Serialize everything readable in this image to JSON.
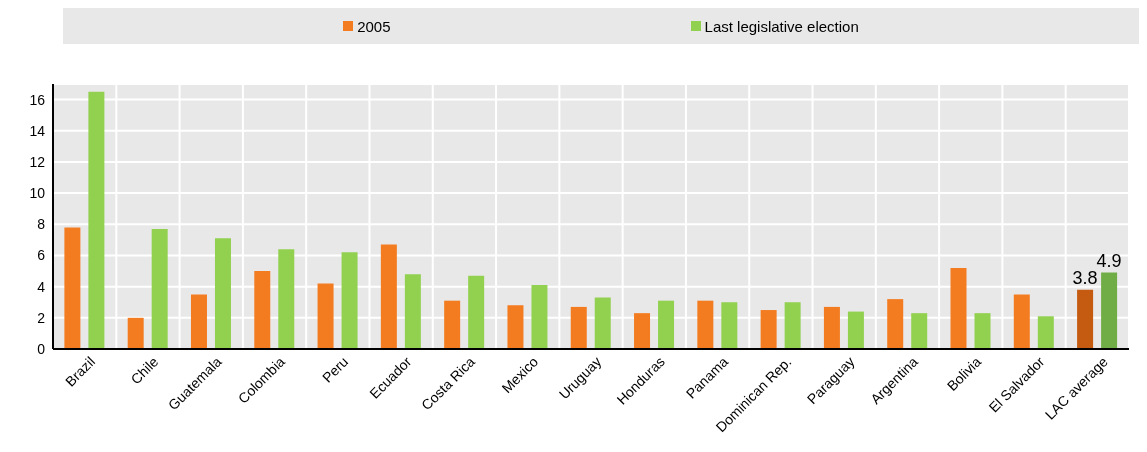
{
  "chart_data": {
    "type": "bar",
    "categories": [
      "Brazil",
      "Chile",
      "Guatemala",
      "Colombia",
      "Peru",
      "Ecuador",
      "Costa Rica",
      "Mexico",
      "Uruguay",
      "Honduras",
      "Panama",
      "Dominican Rep.",
      "Paraguay",
      "Argentina",
      "Bolivia",
      "El Salvador",
      "LAC average"
    ],
    "series": [
      {
        "name": "2005",
        "color": "#f47c20",
        "colors": [
          "#f47c20",
          "#f47c20",
          "#f47c20",
          "#f47c20",
          "#f47c20",
          "#f47c20",
          "#f47c20",
          "#f47c20",
          "#f47c20",
          "#f47c20",
          "#f47c20",
          "#f47c20",
          "#f47c20",
          "#f47c20",
          "#f47c20",
          "#f47c20",
          "#c55a11"
        ],
        "values": [
          7.8,
          2.0,
          3.5,
          5.0,
          4.2,
          6.7,
          3.1,
          2.8,
          2.7,
          2.3,
          3.1,
          2.5,
          2.7,
          3.2,
          5.2,
          3.5,
          3.8
        ],
        "value_labels": [
          null,
          null,
          null,
          null,
          null,
          null,
          null,
          null,
          null,
          null,
          null,
          null,
          null,
          null,
          null,
          null,
          "3.8"
        ]
      },
      {
        "name": "Last legislative election",
        "color": "#92d050",
        "colors": [
          "#92d050",
          "#92d050",
          "#92d050",
          "#92d050",
          "#92d050",
          "#92d050",
          "#92d050",
          "#92d050",
          "#92d050",
          "#92d050",
          "#92d050",
          "#92d050",
          "#92d050",
          "#92d050",
          "#92d050",
          "#92d050",
          "#70ad47"
        ],
        "values": [
          16.5,
          7.7,
          7.1,
          6.4,
          6.2,
          4.8,
          4.7,
          4.1,
          3.3,
          3.1,
          3.0,
          3.0,
          2.4,
          2.3,
          2.3,
          2.1,
          4.9
        ],
        "value_labels": [
          null,
          null,
          null,
          null,
          null,
          null,
          null,
          null,
          null,
          null,
          null,
          null,
          null,
          null,
          null,
          null,
          "4.9"
        ]
      }
    ],
    "ylim": [
      0,
      17
    ],
    "yticks": [
      0,
      2,
      4,
      6,
      8,
      10,
      12,
      14,
      16
    ],
    "grid": true,
    "legend": "top"
  }
}
